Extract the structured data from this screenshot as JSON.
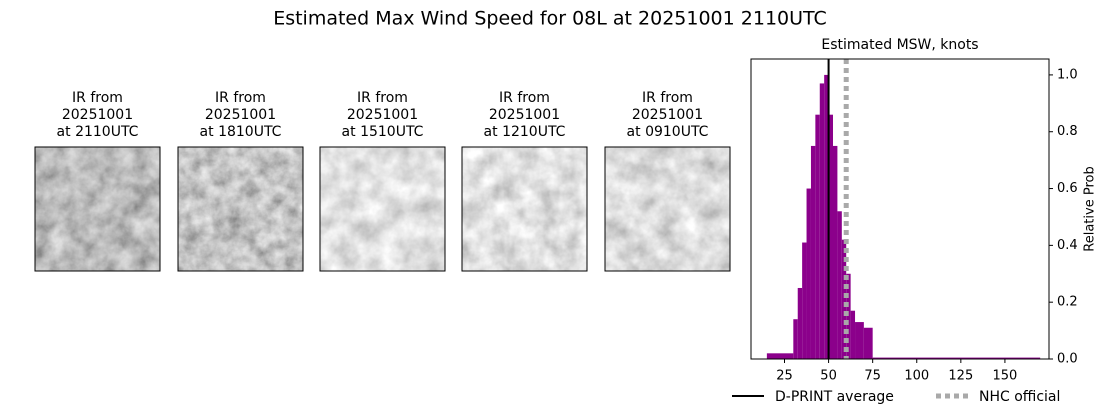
{
  "title": "Estimated Max Wind Speed for 08L at 20251001 2110UTC",
  "panels": [
    {
      "lines": [
        "IR from",
        "20251001",
        "at 2110UTC"
      ]
    },
    {
      "lines": [
        "IR from",
        "20251001",
        "at 1810UTC"
      ]
    },
    {
      "lines": [
        "IR from",
        "20251001",
        "at 1510UTC"
      ]
    },
    {
      "lines": [
        "IR from",
        "20251001",
        "at 1210UTC"
      ]
    },
    {
      "lines": [
        "IR from",
        "20251001",
        "at 0910UTC"
      ]
    }
  ],
  "chart_data": {
    "type": "histogram",
    "title": "Estimated MSW, knots",
    "y_label": "Relative Prob",
    "color": "#8b008b",
    "bins": [
      15,
      30,
      32.5,
      35,
      37.5,
      40,
      42.5,
      45,
      47.5,
      50,
      52.5,
      55,
      57.5,
      60,
      62.5,
      65,
      70,
      75,
      170
    ],
    "counts": [
      0.02,
      0.14,
      0.25,
      0.41,
      0.6,
      0.75,
      0.86,
      0.97,
      1.0,
      0.86,
      0.75,
      0.52,
      0.42,
      0.3,
      0.17,
      0.13,
      0.11,
      0.005
    ],
    "xlim": [
      6,
      175
    ],
    "ylim": [
      0,
      1.056
    ],
    "xticks": [
      25,
      50,
      75,
      100,
      125,
      150
    ],
    "yticks": [
      {
        "value": 0,
        "label": "0.0"
      },
      {
        "value": 0.2,
        "label": "0.2"
      },
      {
        "value": 0.4,
        "label": "0.4"
      },
      {
        "value": 0.6,
        "label": "0.6"
      },
      {
        "value": 0.8,
        "label": "0.8"
      },
      {
        "value": 1.0,
        "label": "1.0"
      }
    ],
    "lines": [
      {
        "name": "D-PRINT average",
        "value": 50,
        "color": "#000000",
        "style": "solid"
      },
      {
        "name": "NHC official",
        "value": 60,
        "color": "#a9a9a9",
        "style": "dotted"
      }
    ]
  }
}
